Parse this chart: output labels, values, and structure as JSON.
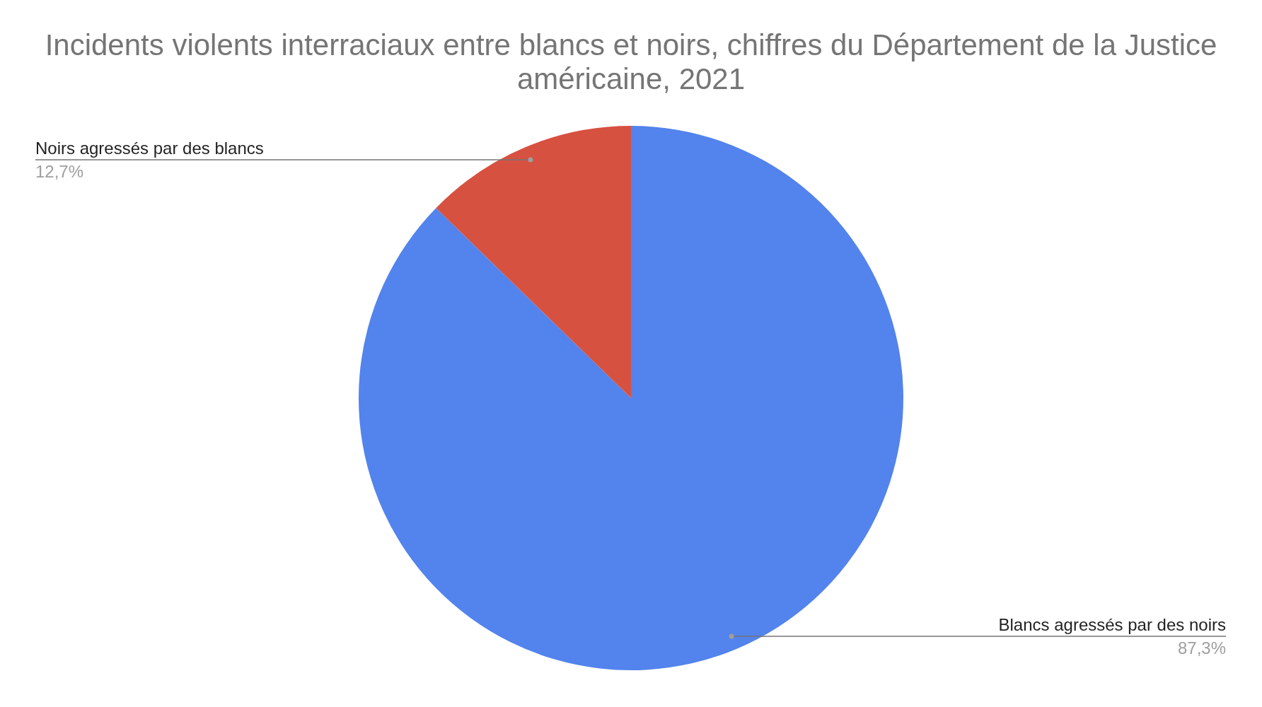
{
  "chart_data": {
    "type": "pie",
    "title": "Incidents violents interraciaux entre blancs et noirs, chiffres du Département de la Justice américaine, 2021",
    "categories": [
      "Blancs agressés par des noirs",
      "Noirs agressés par des blancs"
    ],
    "values": [
      87.3,
      12.7
    ],
    "value_labels": [
      "87,3%",
      "12,7%"
    ],
    "colors": [
      "#5383ec",
      "#d75140"
    ],
    "legend": false
  }
}
